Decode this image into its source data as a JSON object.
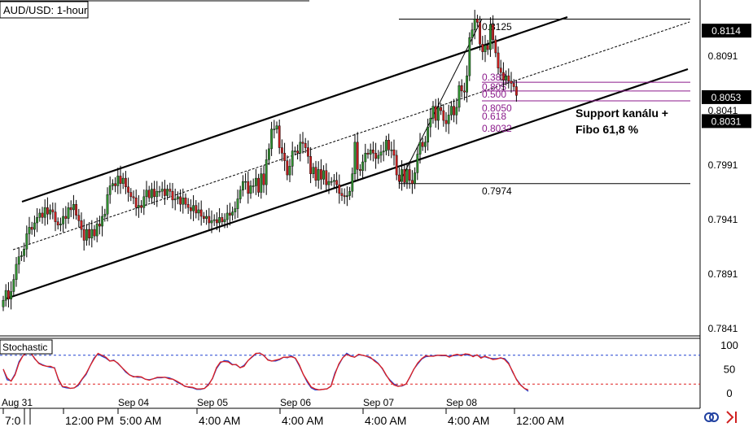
{
  "title": "AUD/USD: 1-hour",
  "stoch_label": "Stochastic",
  "annotation": [
    "Support kanálu +",
    "Fibo 61,8 %"
  ],
  "colors": {
    "bull": "#2f8f2f",
    "bear": "#c81e1e",
    "fib": "#8b1a8b",
    "stoch_k": "#2040d0",
    "stoch_d": "#e02020",
    "level_top": "#2040d0",
    "level_bottom": "#e02020",
    "price_box": "#000000"
  },
  "icons": [
    "sync-icon",
    "arrow-out-icon"
  ],
  "chart_data": [
    {
      "type": "candlestick",
      "title": "AUD/USD: 1-hour",
      "y_ticks": [
        0.7841,
        0.7891,
        0.7941,
        0.7991,
        0.8041,
        0.8091
      ],
      "ylim": [
        0.7826,
        0.8144
      ],
      "highlight_labels": [
        0.8114,
        0.8053,
        0.8031
      ],
      "grid": false,
      "x_ticks_top": [
        "Aug 31",
        "Sep 04",
        "Sep 05",
        "Sep 06",
        "Sep 07",
        "Sep 08"
      ],
      "x_ticks_bottom": [
        "7:0",
        "12:00 PM",
        "5:00 AM",
        "4:00 AM",
        "4:00 AM",
        "4:00 AM",
        "4:00 AM",
        "12:00 AM"
      ],
      "fibonacci": [
        {
          "label": "0.8125",
          "value": 0.8125
        },
        {
          "label": "0.382",
          "value": 0.8067
        },
        {
          "label": "0.805",
          "value": 0.8059
        },
        {
          "label": "0.500",
          "value": 0.8059
        },
        {
          "label": "0.8050",
          "value": 0.805
        },
        {
          "label": "0.618",
          "value": 0.805
        },
        {
          "label": "0.8032",
          "value": 0.8031
        },
        {
          "label": "0.7974",
          "value": 0.7974
        }
      ],
      "closes": [
        0.7867,
        0.7876,
        0.7868,
        0.7875,
        0.7886,
        0.79,
        0.7907,
        0.7908,
        0.7914,
        0.7928,
        0.7934,
        0.7932,
        0.7938,
        0.7943,
        0.7947,
        0.7943,
        0.7952,
        0.7946,
        0.795,
        0.7948,
        0.7939,
        0.7936,
        0.7937,
        0.7944,
        0.7942,
        0.7952,
        0.795,
        0.7955,
        0.7945,
        0.794,
        0.7932,
        0.7922,
        0.7932,
        0.7924,
        0.7932,
        0.7926,
        0.7937,
        0.7935,
        0.7944,
        0.7946,
        0.7964,
        0.7972,
        0.7974,
        0.7972,
        0.7981,
        0.7974,
        0.7979,
        0.7971,
        0.7966,
        0.7962,
        0.7961,
        0.7952,
        0.7954,
        0.7952,
        0.7962,
        0.7968,
        0.7961,
        0.7969,
        0.7962,
        0.7967,
        0.7967,
        0.7969,
        0.7963,
        0.7969,
        0.7967,
        0.7959,
        0.796,
        0.7962,
        0.7955,
        0.7961,
        0.7955,
        0.7952,
        0.7949,
        0.7954,
        0.7947,
        0.795,
        0.7944,
        0.7942,
        0.7944,
        0.7938,
        0.794,
        0.7941,
        0.7938,
        0.7943,
        0.7939,
        0.7941,
        0.7947,
        0.7945,
        0.7948,
        0.7951,
        0.796,
        0.7968,
        0.7976,
        0.7976,
        0.7965,
        0.7972,
        0.7972,
        0.7979,
        0.7966,
        0.7983,
        0.7973,
        0.7996,
        0.8006,
        0.8024,
        0.8024,
        0.8027,
        0.8007,
        0.8002,
        0.7995,
        0.7982,
        0.799,
        0.8004,
        0.8004,
        0.8002,
        0.8012,
        0.8011,
        0.8007,
        0.7999,
        0.7983,
        0.7989,
        0.7977,
        0.7987,
        0.7978,
        0.7986,
        0.7973,
        0.7976,
        0.7976,
        0.7977,
        0.7973,
        0.7965,
        0.7963,
        0.7962,
        0.7963,
        0.7967,
        0.7983,
        0.8012,
        0.7987,
        0.7986,
        0.7994,
        0.8002,
        0.8001,
        0.8005,
        0.8002,
        0.7997,
        0.8,
        0.8003,
        0.8004,
        0.8014,
        0.8005,
        0.8005,
        0.8,
        0.7982,
        0.7976,
        0.7987,
        0.7975,
        0.7987,
        0.7977,
        0.7974,
        0.7984,
        0.8001,
        0.8012,
        0.8008,
        0.8012,
        0.8026,
        0.8034,
        0.8045,
        0.8032,
        0.8044,
        0.8041,
        0.8032,
        0.8029,
        0.8037,
        0.8045,
        0.8037,
        0.8044,
        0.8064,
        0.8059,
        0.8058,
        0.8073,
        0.8108,
        0.8115,
        0.8125,
        0.8122,
        0.8102,
        0.8095,
        0.8101,
        0.8097,
        0.812,
        0.8106,
        0.8094,
        0.808,
        0.8076,
        0.8069,
        0.8073,
        0.8068,
        0.8066,
        0.8063,
        0.8055
      ]
    },
    {
      "type": "line",
      "title": "Stochastic",
      "y_ticks": [
        0,
        50,
        100
      ],
      "ylim": [
        -15,
        115
      ],
      "levels": [
        80,
        20
      ],
      "series": [
        {
          "values": [
            51,
            29,
            27,
            41,
            67,
            79,
            86,
            85,
            72,
            64,
            60,
            57,
            55,
            54,
            28,
            14,
            12,
            11,
            12,
            17,
            30,
            40,
            58,
            74,
            83,
            78,
            74,
            68,
            70,
            63,
            55,
            45,
            39,
            36,
            34,
            34,
            30,
            29,
            31,
            33,
            33,
            34,
            33,
            30,
            24,
            20,
            16,
            13,
            12,
            9,
            9,
            11,
            20,
            31,
            52,
            64,
            69,
            68,
            61,
            60,
            54,
            59,
            69,
            76,
            83,
            85,
            79,
            71,
            68,
            68,
            71,
            76,
            75,
            79,
            73,
            58,
            40,
            24,
            12,
            8,
            8,
            9,
            10,
            16,
            43,
            60,
            75,
            84,
            79,
            76,
            81,
            80,
            78,
            74,
            70,
            63,
            52,
            38,
            28,
            20,
            16,
            16,
            20,
            34,
            51,
            62,
            72,
            77,
            78,
            79,
            80,
            79,
            79,
            78,
            79,
            80,
            81,
            82,
            80,
            79,
            80,
            76,
            77,
            74,
            73,
            73,
            74,
            73,
            64,
            45,
            30,
            19,
            11,
            5
          ]
        },
        {
          "values": [
            51,
            33,
            26,
            39,
            64,
            79,
            85,
            85,
            73,
            63,
            59,
            57,
            57,
            53,
            30,
            15,
            14,
            11,
            12,
            19,
            31,
            42,
            58,
            72,
            84,
            80,
            76,
            68,
            69,
            64,
            55,
            47,
            39,
            35,
            36,
            35,
            30,
            28,
            31,
            34,
            34,
            34,
            31,
            30,
            26,
            21,
            15,
            14,
            13,
            10,
            10,
            11,
            18,
            32,
            54,
            66,
            67,
            66,
            60,
            61,
            54,
            57,
            69,
            77,
            84,
            84,
            80,
            70,
            68,
            70,
            72,
            76,
            76,
            77,
            74,
            60,
            40,
            27,
            14,
            10,
            8,
            9,
            10,
            15,
            40,
            62,
            75,
            82,
            78,
            76,
            82,
            80,
            78,
            76,
            68,
            62,
            53,
            39,
            26,
            18,
            15,
            17,
            20,
            35,
            51,
            64,
            73,
            79,
            78,
            78,
            80,
            80,
            80,
            76,
            80,
            82,
            79,
            83,
            82,
            77,
            81,
            74,
            78,
            75,
            71,
            72,
            75,
            71,
            62,
            47,
            29,
            18,
            11,
            8
          ]
        }
      ]
    }
  ]
}
